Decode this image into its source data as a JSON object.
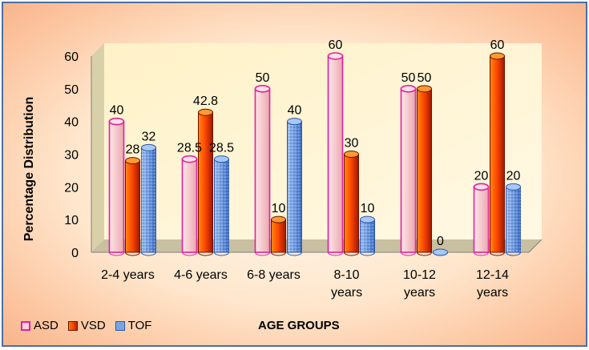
{
  "chart_data": {
    "type": "bar",
    "categories": [
      [
        "2-4 years"
      ],
      [
        "4-6 years"
      ],
      [
        "6-8 years"
      ],
      [
        "8-10",
        "years"
      ],
      [
        "10-12",
        "years"
      ],
      [
        "12-14",
        "years"
      ]
    ],
    "series": [
      {
        "name": "ASD",
        "values": [
          40,
          28.5,
          50,
          60,
          50,
          20
        ],
        "labels": [
          "40",
          "28.5",
          "50",
          "60",
          "50",
          "20"
        ]
      },
      {
        "name": "VSD",
        "values": [
          28,
          42.8,
          10,
          30,
          50,
          60
        ],
        "labels": [
          "28",
          "42.8",
          "10",
          "30",
          "50",
          "60"
        ]
      },
      {
        "name": "TOF",
        "values": [
          32,
          28.5,
          40,
          10,
          0,
          20
        ],
        "labels": [
          "32",
          "28.5",
          "40",
          "10",
          "0",
          "20"
        ]
      }
    ],
    "ylabel": "Percentage Distribution",
    "xlabel": "AGE GROUPS",
    "ylim": [
      0,
      60
    ],
    "yticks": [
      "0",
      "10",
      "20",
      "30",
      "40",
      "50",
      "60"
    ],
    "colors": {
      "ASD": "#f8d4d8",
      "ASD_outline": "#e020a0",
      "VSD": "#e84000",
      "TOF": "#6f9be0"
    },
    "grid": false,
    "legend_position": "bottom-left"
  }
}
